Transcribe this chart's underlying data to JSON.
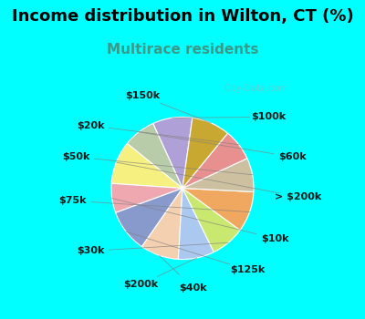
{
  "title": "Income distribution in Wilton, CT (%)",
  "subtitle": "Multirace residents",
  "background_color": "#00ffff",
  "chart_bg_top": "#e8f5f0",
  "chart_bg_bottom": "#d0eedd",
  "labels": [
    "$100k",
    "$60k",
    "> $200k",
    "$10k",
    "$125k",
    "$40k",
    "$200k",
    "$30k",
    "$75k",
    "$50k",
    "$20k",
    "$150k"
  ],
  "sizes": [
    8.8,
    7.2,
    9.5,
    6.5,
    9.5,
    8.5,
    8.0,
    7.5,
    9.0,
    7.5,
    7.0,
    8.5
  ],
  "colors": [
    "#b0a0d8",
    "#b8ccaa",
    "#f5f080",
    "#f0a8b0",
    "#8899cc",
    "#f5d0b0",
    "#aac8f0",
    "#c8e870",
    "#f0a860",
    "#ccc0a0",
    "#e89090",
    "#c8a830"
  ],
  "title_fontsize": 13,
  "subtitle_fontsize": 11,
  "label_fontsize": 8,
  "startangle": 90,
  "watermark": "City-Data.com",
  "watermark_color": "#aaaaaa"
}
